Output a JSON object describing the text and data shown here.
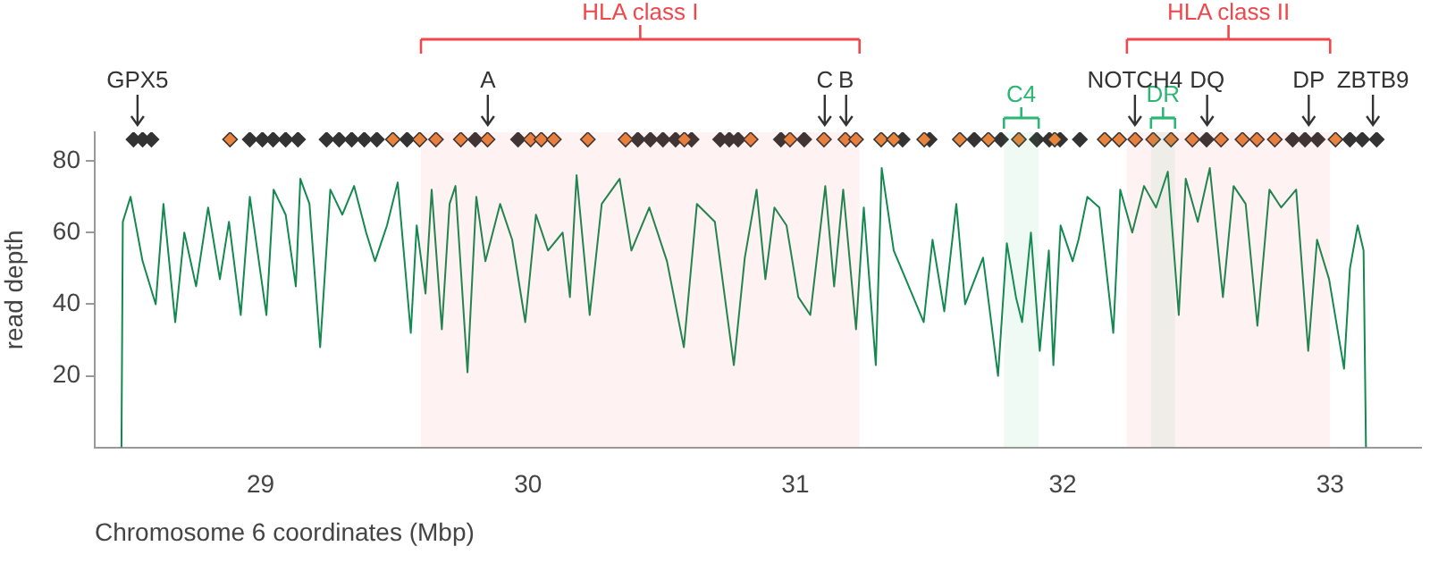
{
  "chart_data": {
    "type": "line",
    "xlabel": "Chromosome 6 coordinates (Mbp)",
    "ylabel": "read depth",
    "xlim": [
      28.38,
      33.34
    ],
    "xticks": [
      29,
      30,
      31,
      32,
      33
    ],
    "ylim": [
      0,
      88
    ],
    "yticks": [
      20,
      40,
      60,
      80
    ],
    "grid": false,
    "legend": false,
    "series": [
      {
        "marker": "none",
        "color": "#13894f",
        "x": [
          28.48,
          28.485,
          28.514,
          28.559,
          28.608,
          28.637,
          28.681,
          28.715,
          28.759,
          28.804,
          28.848,
          28.882,
          28.926,
          28.96,
          29.022,
          29.049,
          29.094,
          29.132,
          29.149,
          29.183,
          29.223,
          29.261,
          29.306,
          29.35,
          29.395,
          29.428,
          29.473,
          29.513,
          29.562,
          29.584,
          29.617,
          29.64,
          29.678,
          29.707,
          29.729,
          29.774,
          29.807,
          29.841,
          29.896,
          29.941,
          29.99,
          30.03,
          30.075,
          30.13,
          30.157,
          30.182,
          30.231,
          30.276,
          30.343,
          30.387,
          30.454,
          30.52,
          30.583,
          30.632,
          30.699,
          30.77,
          30.811,
          30.855,
          30.888,
          30.922,
          30.967,
          31.011,
          31.056,
          31.112,
          31.145,
          31.179,
          31.227,
          31.256,
          31.301,
          31.323,
          31.368,
          31.413,
          31.48,
          31.513,
          31.557,
          31.602,
          31.635,
          31.702,
          31.758,
          31.791,
          31.825,
          31.848,
          31.881,
          31.914,
          31.948,
          31.965,
          31.992,
          32.037,
          32.059,
          32.092,
          32.137,
          32.189,
          32.215,
          32.26,
          32.304,
          32.349,
          32.393,
          32.434,
          32.46,
          32.505,
          32.55,
          32.599,
          32.639,
          32.684,
          32.728,
          32.773,
          32.817,
          32.873,
          32.918,
          32.951,
          32.996,
          33.052,
          33.074,
          33.103,
          33.125,
          33.134
        ],
        "values": [
          0,
          63,
          70,
          52,
          40,
          68,
          35,
          60,
          45,
          67,
          47,
          63,
          37,
          70,
          37,
          72,
          65,
          45,
          75,
          68,
          28,
          72,
          65,
          73,
          60,
          52,
          62,
          74,
          32,
          62,
          43,
          72,
          33,
          68,
          73,
          21,
          70,
          52,
          68,
          58,
          35,
          65,
          55,
          60,
          42,
          76,
          37,
          68,
          75,
          55,
          67,
          52,
          28,
          68,
          63,
          23,
          53,
          72,
          47,
          67,
          62,
          42,
          37,
          73,
          45,
          72,
          33,
          67,
          23,
          78,
          55,
          47,
          35,
          58,
          38,
          68,
          40,
          53,
          20,
          57,
          42,
          35,
          60,
          27,
          55,
          23,
          62,
          52,
          58,
          70,
          67,
          32,
          72,
          60,
          73,
          67,
          77,
          37,
          75,
          63,
          78,
          42,
          73,
          68,
          34,
          72,
          67,
          72,
          27,
          58,
          47,
          22,
          50,
          62,
          55,
          0
        ]
      },
      {
        "type": "scatter",
        "marker": "diamond",
        "color": "#e8843c",
        "x": [
          28.886,
          29.495,
          29.595,
          29.656,
          29.749,
          29.849,
          30.01,
          30.05,
          30.097,
          30.224,
          30.365,
          30.585,
          30.833,
          30.98,
          31.107,
          31.187,
          31.227,
          31.321,
          31.368,
          31.482,
          31.615,
          31.722,
          31.836,
          31.97,
          32.157,
          32.211,
          32.271,
          32.338,
          32.405,
          32.485,
          32.592,
          32.672,
          32.726,
          32.793,
          33.02
        ],
        "values": [
          86,
          86,
          86,
          86,
          86,
          86,
          86,
          86,
          86,
          86,
          86,
          86,
          86,
          86,
          86,
          86,
          86,
          86,
          86,
          86,
          86,
          86,
          86,
          86,
          86,
          86,
          86,
          86,
          86,
          86,
          86,
          86,
          86,
          86,
          86
        ]
      },
      {
        "type": "scatter",
        "marker": "diamond",
        "color": "#333333",
        "x": [
          28.525,
          28.559,
          28.592,
          28.96,
          29.007,
          29.047,
          29.094,
          29.14,
          29.247,
          29.294,
          29.341,
          29.388,
          29.435,
          29.548,
          29.803,
          29.963,
          30.411,
          30.458,
          30.505,
          30.552,
          30.612,
          30.719,
          30.753,
          30.786,
          30.946,
          31.033,
          31.401,
          31.502,
          31.669,
          31.769,
          31.903,
          31.95,
          31.99,
          32.064,
          32.538,
          32.86,
          32.906,
          32.953,
          33.074,
          33.12,
          33.174
        ],
        "values": [
          86,
          86,
          86,
          86,
          86,
          86,
          86,
          86,
          86,
          86,
          86,
          86,
          86,
          86,
          86,
          86,
          86,
          86,
          86,
          86,
          86,
          86,
          86,
          86,
          86,
          86,
          86,
          86,
          86,
          86,
          86,
          86,
          86,
          86,
          86,
          86,
          86,
          86,
          86,
          86,
          86
        ]
      }
    ],
    "bands": [
      {
        "axis": "x",
        "from": 29.6,
        "to": 31.24,
        "label": "HLA class I",
        "color": "#f0474b"
      },
      {
        "axis": "x",
        "from": 32.24,
        "to": 33.0,
        "label": "HLA class II",
        "color": "#f0474b"
      },
      {
        "axis": "x",
        "from": 31.78,
        "to": 31.91,
        "label": "C4",
        "color": "#2bb673"
      },
      {
        "axis": "x",
        "from": 32.33,
        "to": 32.42,
        "label": "DR",
        "color": "#2bb673"
      }
    ],
    "annotations": [
      {
        "text": "GPX5",
        "x": 28.54,
        "y": 86
      },
      {
        "text": "A",
        "x": 29.85,
        "y": 86
      },
      {
        "text": "C",
        "x": 31.11,
        "y": 86
      },
      {
        "text": "B",
        "x": 31.19,
        "y": 86
      },
      {
        "text": "NOTCH4",
        "x": 32.27,
        "y": 86
      },
      {
        "text": "DQ",
        "x": 32.54,
        "y": 86
      },
      {
        "text": "DP",
        "x": 32.92,
        "y": 86
      },
      {
        "text": "ZBTB9",
        "x": 33.16,
        "y": 86
      }
    ]
  }
}
